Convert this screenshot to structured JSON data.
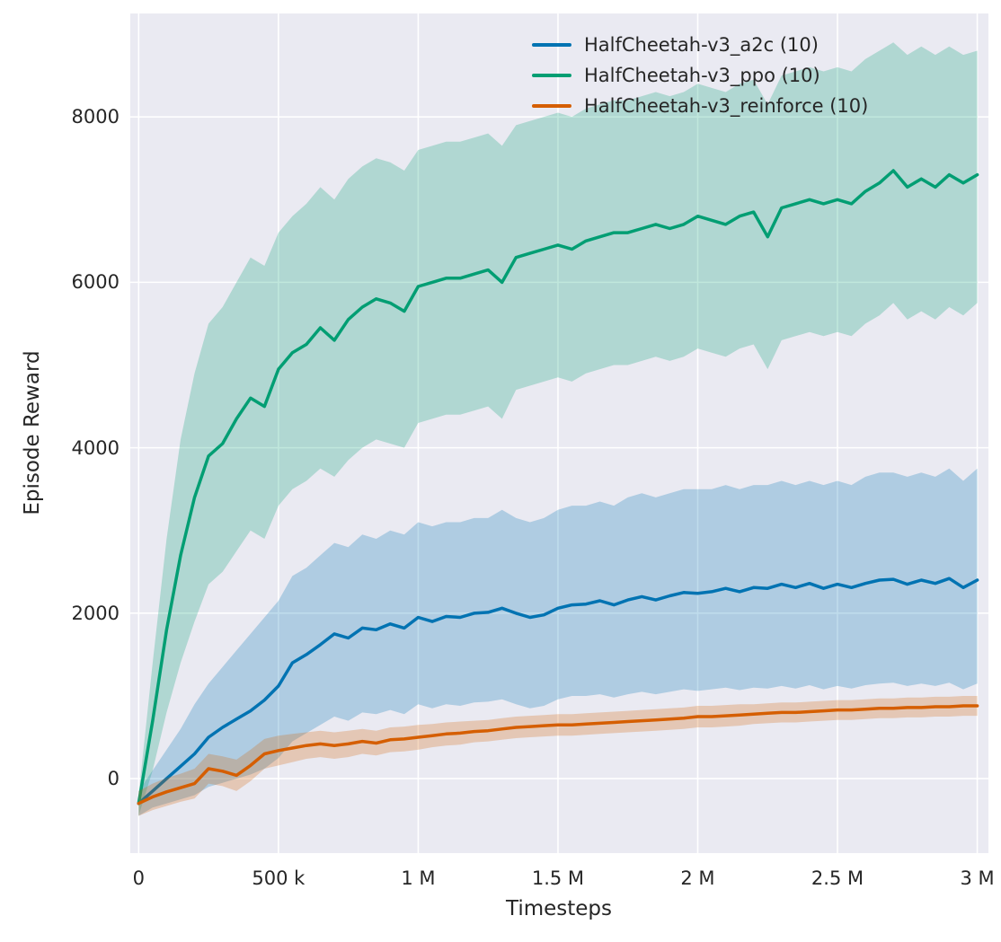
{
  "figure": {
    "background": "#ffffff",
    "plot_background": "#eaeaf2",
    "grid_color": "#ffffff",
    "text_color": "#262626"
  },
  "chart_data": {
    "type": "line",
    "title": "",
    "xlabel": "Timesteps",
    "ylabel": "Episode Reward",
    "x_unit": "thousands of timesteps",
    "xlim": [
      -30,
      3040
    ],
    "ylim": [
      -900,
      9250
    ],
    "grid": true,
    "band_alpha": 0.25,
    "legend_position": "upper center-right",
    "x_ticks": [
      {
        "v": 0,
        "label": "0"
      },
      {
        "v": 500,
        "label": "500 k"
      },
      {
        "v": 1000,
        "label": "1 M"
      },
      {
        "v": 1500,
        "label": "1.5 M"
      },
      {
        "v": 2000,
        "label": "2 M"
      },
      {
        "v": 2500,
        "label": "2.5 M"
      },
      {
        "v": 3000,
        "label": "3 M"
      }
    ],
    "y_ticks": [
      {
        "v": 0,
        "label": "0"
      },
      {
        "v": 2000,
        "label": "2000"
      },
      {
        "v": 4000,
        "label": "4000"
      },
      {
        "v": 6000,
        "label": "6000"
      },
      {
        "v": 8000,
        "label": "8000"
      }
    ],
    "x": [
      0,
      50,
      100,
      150,
      200,
      250,
      300,
      350,
      400,
      450,
      500,
      550,
      600,
      650,
      700,
      750,
      800,
      850,
      900,
      950,
      1000,
      1050,
      1100,
      1150,
      1200,
      1250,
      1300,
      1350,
      1400,
      1450,
      1500,
      1550,
      1600,
      1650,
      1700,
      1750,
      1800,
      1850,
      1900,
      1950,
      2000,
      2050,
      2100,
      2150,
      2200,
      2250,
      2300,
      2350,
      2400,
      2450,
      2500,
      2550,
      2600,
      2650,
      2700,
      2750,
      2800,
      2850,
      2900,
      2950,
      3000
    ],
    "series": [
      {
        "name": "HalfCheetah-v3_a2c (10)",
        "color": "#0173b2",
        "mean": [
          -300,
          -150,
          0,
          150,
          300,
          500,
          620,
          720,
          820,
          950,
          1120,
          1400,
          1500,
          1620,
          1750,
          1700,
          1820,
          1800,
          1870,
          1820,
          1950,
          1900,
          1960,
          1950,
          2000,
          2010,
          2060,
          2000,
          1950,
          1980,
          2060,
          2100,
          2110,
          2150,
          2100,
          2160,
          2200,
          2160,
          2210,
          2250,
          2240,
          2260,
          2300,
          2260,
          2310,
          2300,
          2350,
          2310,
          2360,
          2300,
          2350,
          2310,
          2360,
          2400,
          2410,
          2350,
          2400,
          2360,
          2420,
          2310,
          2400
        ],
        "upper": [
          -150,
          100,
          350,
          600,
          900,
          1150,
          1350,
          1550,
          1750,
          1950,
          2150,
          2450,
          2550,
          2700,
          2850,
          2800,
          2950,
          2900,
          3000,
          2950,
          3100,
          3050,
          3100,
          3100,
          3150,
          3150,
          3250,
          3150,
          3100,
          3150,
          3250,
          3300,
          3300,
          3350,
          3300,
          3400,
          3450,
          3400,
          3450,
          3500,
          3500,
          3500,
          3550,
          3500,
          3550,
          3550,
          3600,
          3550,
          3600,
          3550,
          3600,
          3550,
          3650,
          3700,
          3700,
          3650,
          3700,
          3650,
          3750,
          3600,
          3750
        ],
        "lower": [
          -450,
          -350,
          -300,
          -250,
          -200,
          -100,
          -50,
          0,
          50,
          120,
          250,
          450,
          550,
          650,
          750,
          700,
          800,
          780,
          830,
          780,
          900,
          850,
          900,
          880,
          920,
          930,
          960,
          900,
          850,
          880,
          960,
          1000,
          1000,
          1020,
          980,
          1020,
          1050,
          1020,
          1050,
          1080,
          1060,
          1080,
          1100,
          1070,
          1100,
          1090,
          1120,
          1090,
          1130,
          1080,
          1120,
          1090,
          1130,
          1150,
          1160,
          1120,
          1150,
          1120,
          1160,
          1080,
          1150
        ]
      },
      {
        "name": "HalfCheetah-v3_ppo (10)",
        "color": "#029e73",
        "mean": [
          -300,
          700,
          1800,
          2700,
          3400,
          3900,
          4050,
          4350,
          4600,
          4500,
          4950,
          5150,
          5250,
          5450,
          5300,
          5550,
          5700,
          5800,
          5750,
          5650,
          5950,
          6000,
          6050,
          6050,
          6100,
          6150,
          6000,
          6300,
          6350,
          6400,
          6450,
          6400,
          6500,
          6550,
          6600,
          6600,
          6650,
          6700,
          6650,
          6700,
          6800,
          6750,
          6700,
          6800,
          6850,
          6550,
          6900,
          6950,
          7000,
          6950,
          7000,
          6950,
          7100,
          7200,
          7350,
          7150,
          7250,
          7150,
          7300,
          7200,
          7300
        ],
        "upper": [
          -200,
          1400,
          2900,
          4100,
          4900,
          5500,
          5700,
          6000,
          6300,
          6200,
          6600,
          6800,
          6950,
          7150,
          7000,
          7250,
          7400,
          7500,
          7450,
          7350,
          7600,
          7650,
          7700,
          7700,
          7750,
          7800,
          7650,
          7900,
          7950,
          8000,
          8050,
          8000,
          8100,
          8150,
          8200,
          8200,
          8250,
          8300,
          8250,
          8300,
          8400,
          8350,
          8300,
          8400,
          8450,
          8150,
          8500,
          8550,
          8600,
          8550,
          8600,
          8550,
          8700,
          8800,
          8900,
          8750,
          8850,
          8750,
          8850,
          8750,
          8800
        ],
        "lower": [
          -450,
          100,
          800,
          1400,
          1900,
          2350,
          2500,
          2750,
          3000,
          2900,
          3300,
          3500,
          3600,
          3750,
          3650,
          3850,
          4000,
          4100,
          4050,
          4000,
          4300,
          4350,
          4400,
          4400,
          4450,
          4500,
          4350,
          4700,
          4750,
          4800,
          4850,
          4800,
          4900,
          4950,
          5000,
          5000,
          5050,
          5100,
          5050,
          5100,
          5200,
          5150,
          5100,
          5200,
          5250,
          4950,
          5300,
          5350,
          5400,
          5350,
          5400,
          5350,
          5500,
          5600,
          5750,
          5550,
          5650,
          5550,
          5700,
          5600,
          5750
        ]
      },
      {
        "name": "HalfCheetah-v3_reinforce (10)",
        "color": "#d55e00",
        "mean": [
          -300,
          -220,
          -160,
          -110,
          -60,
          120,
          90,
          40,
          160,
          300,
          340,
          370,
          400,
          420,
          400,
          420,
          450,
          430,
          470,
          480,
          500,
          520,
          540,
          550,
          570,
          580,
          600,
          620,
          630,
          640,
          650,
          650,
          660,
          670,
          680,
          690,
          700,
          710,
          720,
          730,
          750,
          750,
          760,
          770,
          780,
          790,
          800,
          800,
          810,
          820,
          830,
          830,
          840,
          850,
          850,
          860,
          860,
          870,
          870,
          880,
          880
        ],
        "upper": [
          -150,
          -60,
          10,
          60,
          120,
          300,
          270,
          230,
          350,
          480,
          520,
          540,
          560,
          580,
          560,
          580,
          600,
          580,
          620,
          630,
          650,
          660,
          680,
          690,
          700,
          710,
          730,
          750,
          760,
          770,
          780,
          780,
          790,
          800,
          810,
          820,
          830,
          840,
          850,
          860,
          880,
          880,
          890,
          900,
          900,
          910,
          920,
          920,
          930,
          940,
          950,
          950,
          960,
          970,
          970,
          980,
          980,
          990,
          990,
          1000,
          1000
        ],
        "lower": [
          -450,
          -380,
          -330,
          -280,
          -240,
          -60,
          -90,
          -150,
          -30,
          120,
          160,
          200,
          240,
          260,
          240,
          260,
          300,
          280,
          320,
          330,
          350,
          380,
          400,
          410,
          440,
          450,
          470,
          490,
          500,
          510,
          520,
          520,
          530,
          540,
          550,
          560,
          570,
          580,
          590,
          600,
          620,
          620,
          630,
          640,
          660,
          670,
          680,
          680,
          690,
          700,
          710,
          710,
          720,
          730,
          730,
          740,
          740,
          750,
          750,
          760,
          760
        ]
      }
    ]
  }
}
